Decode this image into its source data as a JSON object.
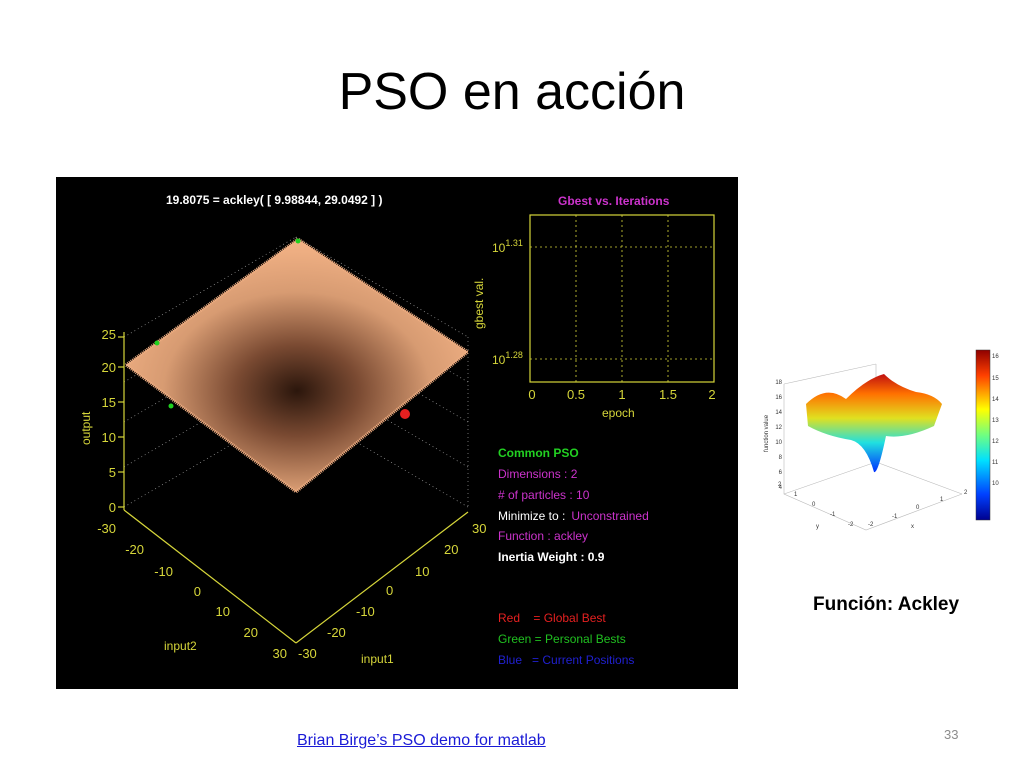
{
  "slide": {
    "title": "PSO en acción",
    "side_caption": "Función: Ackley",
    "source_link": "Brian Birge’s PSO demo for matlab",
    "page_number": "33"
  },
  "demo": {
    "surface_title": "19.8075 = ackley( [    9.98844,    29.0492 ] )",
    "z_axis_label": "output",
    "z_ticks": [
      "0",
      "5",
      "10",
      "15",
      "20",
      "25"
    ],
    "input2_label": "input2",
    "input2_ticks": [
      "-30",
      "-20",
      "-10",
      "0",
      "10",
      "20",
      "30"
    ],
    "input1_label": "input1",
    "input1_ticks": [
      "-30",
      "-20",
      "-10",
      "0",
      "10",
      "20",
      "30"
    ],
    "gbest_plot": {
      "title": "Gbest vs. Iterations",
      "ylabel": "gbest val.",
      "xlabel": "epoch",
      "x_ticks": [
        "0",
        "0.5",
        "1",
        "1.5",
        "2"
      ],
      "y_ticks": [
        {
          "base": "10",
          "exp": "1.31"
        },
        {
          "base": "10",
          "exp": "1.28"
        }
      ]
    },
    "info": {
      "heading": "Common PSO",
      "dimensions": "Dimensions : 2",
      "particles": "# of particles : 10",
      "minimize_label": "Minimize to :",
      "minimize_value": "Unconstrained",
      "function": "Function : ackley",
      "inertia": "Inertia Weight : 0.9"
    },
    "legend": {
      "red": "Red    = Global Best",
      "green": "Green = Personal Bests",
      "blue": "Blue   = Current Positions"
    }
  },
  "side_figure": {
    "zlabel": "function value",
    "z_ticks": [
      "4",
      "6",
      "8",
      "10",
      "12",
      "14",
      "16",
      "18"
    ],
    "colorbar_ticks": [
      "16",
      "15",
      "14",
      "13",
      "12",
      "11",
      "10"
    ],
    "x_ticks": [
      "-2",
      "-1",
      "0",
      "1",
      "2"
    ],
    "y_ticks": [
      "-2",
      "-1",
      "0",
      "1",
      "2"
    ],
    "xlabel": "x",
    "ylabel": "y"
  },
  "colors": {
    "surface": "#f2b084",
    "axis_yellow": "#d6d63a",
    "info_green": "#22d022",
    "info_magenta": "#cc33cc",
    "legend_red": "#e52020",
    "legend_green": "#20c020",
    "legend_blue": "#2020d0",
    "link_blue": "#1a1ad6"
  }
}
